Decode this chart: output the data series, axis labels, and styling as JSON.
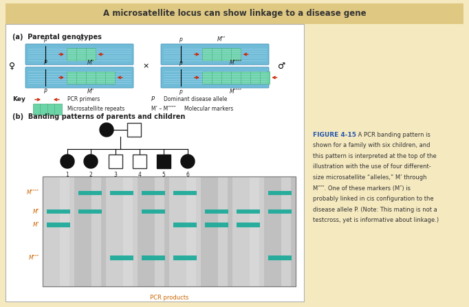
{
  "title": "A microsatellite locus can show linkage to a disease gene",
  "title_bg": "#dfc882",
  "outer_bg": "#f5e9c0",
  "inner_bg": "#ffffff",
  "section_a_label": "(a)  Parental genotypes",
  "section_b_label": "(b)  Banding patterns of parents and children",
  "key_label": "Key",
  "pcr_label": "PCR primers",
  "micro_label": "Microsatellite repeats",
  "dominant_label": "Dominant disease allele",
  "molecular_label": "Molecular markers",
  "pcr_products_label": "PCR products",
  "band_color": "#1aaa99",
  "chrom_blue_light": "#70bcd8",
  "chrom_blue_dark": "#3a88b0",
  "chrom_stripe": "#a8d8ee",
  "micro_fill": "#6dd4a8",
  "micro_border": "#44aa78",
  "arrow_color": "#cc2200",
  "gel_bg": "#d0d0d0",
  "figure_caption_bold": "FIGURE 4-15",
  "figure_caption_text": " A PCR banding pattern is shown for a family with six children, and this pattern is interpreted at the top of the illustration with the use of four different-size microsatellite “alleles,” M’ through M″″″. One of these markers (M″) is probably linked in cis configuration to the disease allele P. (Note: This mating is not a testcross, yet is informative about linkage.)",
  "orange_text": "#cc6600",
  "blue_text": "#2255aa",
  "dark_text": "#222222",
  "lane_bands": [
    {
      "M4": false,
      "M2": true,
      "M1": true,
      "M3": false
    },
    {
      "M4": true,
      "M2": true,
      "M1": false,
      "M3": false
    },
    {
      "M4": true,
      "M2": false,
      "M1": false,
      "M3": true
    },
    {
      "M4": true,
      "M2": true,
      "M1": false,
      "M3": true
    },
    {
      "M4": true,
      "M2": false,
      "M1": true,
      "M3": true
    },
    {
      "M4": false,
      "M2": true,
      "M1": true,
      "M3": false
    },
    {
      "M4": false,
      "M2": true,
      "M1": true,
      "M3": false
    },
    {
      "M4": true,
      "M2": true,
      "M1": false,
      "M3": true
    }
  ],
  "child_shapes": [
    "filled_circle",
    "filled_circle",
    "open_square",
    "open_square",
    "filled_square",
    "filled_circle"
  ]
}
